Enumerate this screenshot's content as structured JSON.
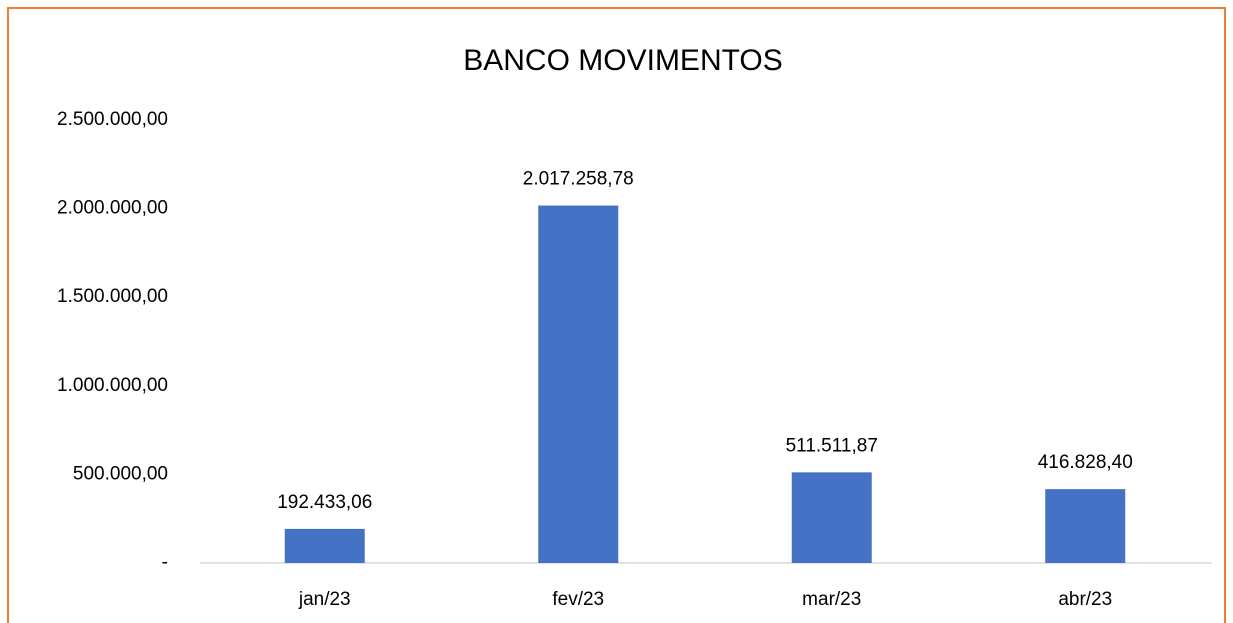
{
  "chart_data": {
    "type": "bar",
    "title": "BANCO MOVIMENTOS",
    "categories": [
      "jan/23",
      "fev/23",
      "mar/23",
      "abr/23"
    ],
    "values": [
      192433.06,
      2017258.78,
      511511.87,
      416828.4
    ],
    "value_labels": [
      "192.433,06",
      "2.017.258,78",
      "511.511,87",
      "416.828,40"
    ],
    "color": "#4472c4",
    "ylim": [
      0,
      2500000
    ],
    "yticks": [
      {
        "value": 0,
        "label": "-"
      },
      {
        "value": 500000,
        "label": "500.000,00"
      },
      {
        "value": 1000000,
        "label": "1.000.000,00"
      },
      {
        "value": 1500000,
        "label": "1.500.000,00"
      },
      {
        "value": 2000000,
        "label": "2.000.000,00"
      },
      {
        "value": 2500000,
        "label": "2.500.000,00"
      }
    ],
    "grid": false
  }
}
